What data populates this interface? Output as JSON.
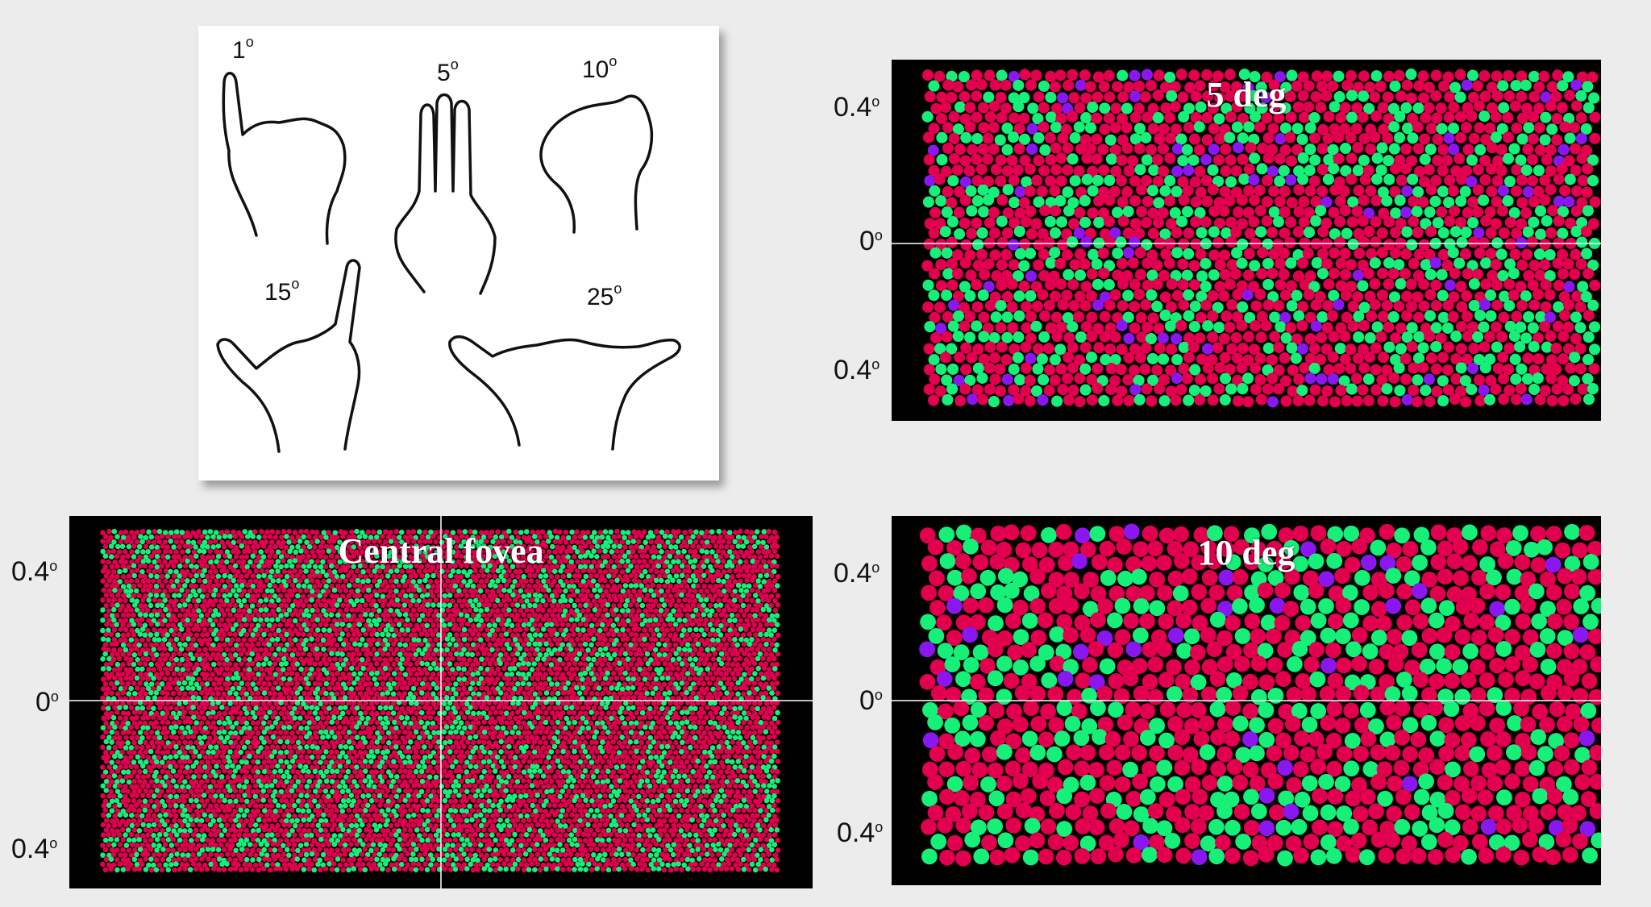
{
  "hand_diagram": {
    "labels": [
      {
        "num": "1",
        "unit": "o"
      },
      {
        "num": "5",
        "unit": "o"
      },
      {
        "num": "10",
        "unit": "o"
      },
      {
        "num": "15",
        "unit": "o"
      },
      {
        "num": "25",
        "unit": "o"
      }
    ]
  },
  "panels": {
    "five_deg": {
      "title": "5 deg"
    },
    "ten_deg": {
      "title": "10 deg"
    },
    "central": {
      "title": "Central fovea"
    }
  },
  "axis_labels": {
    "top": {
      "num": "0.4",
      "unit": "o"
    },
    "middle": {
      "num": "0",
      "unit": "o"
    },
    "bottom": {
      "num": "0.4",
      "unit": "o"
    }
  },
  "colors": {
    "l_cone": "#e2004e",
    "m_cone": "#16f079",
    "s_cone": "#8a17f0",
    "background": "#000000",
    "crosshair": "#ffffff"
  },
  "cone_mosaics": {
    "central": {
      "cone_size": "small",
      "density": "highest",
      "s_cones": "absent"
    },
    "five_deg": {
      "cone_size": "medium",
      "s_cones": "sparse"
    },
    "ten_deg": {
      "cone_size": "large",
      "s_cones": "sparse"
    }
  }
}
